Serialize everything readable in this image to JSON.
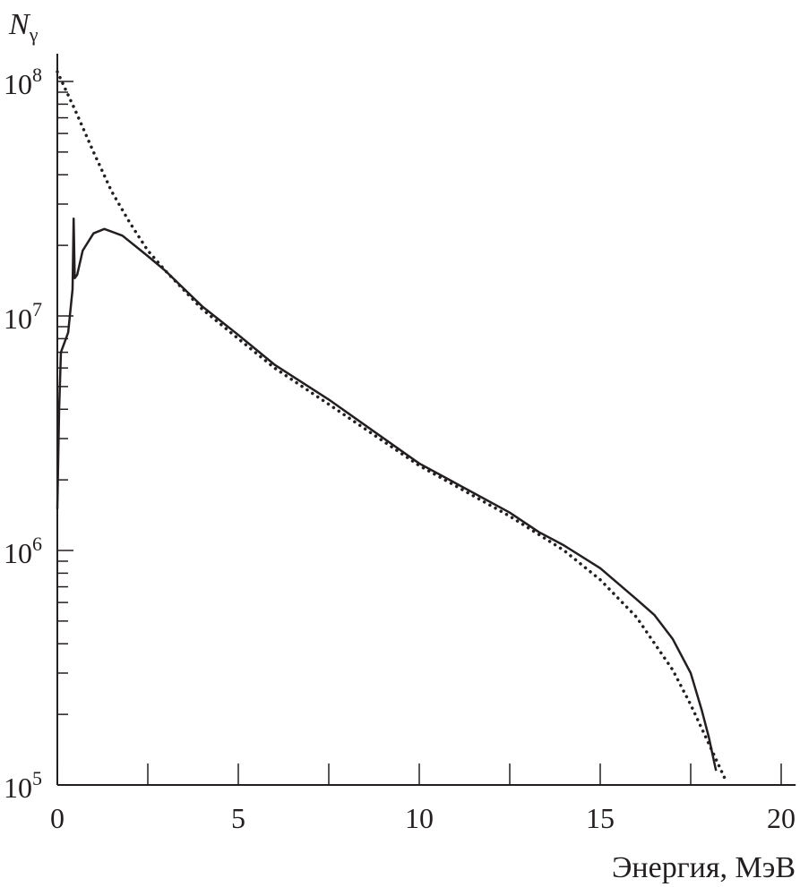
{
  "chart_data": {
    "type": "line",
    "title": "",
    "xlabel": "Энергия, МэВ",
    "ylabel": "N",
    "ylabel_subscript": "γ",
    "xlim": [
      0,
      20.4
    ],
    "ylim": [
      100000,
      150000000
    ],
    "yscale": "log",
    "grid": false,
    "x_ticks": [
      0,
      5,
      10,
      15,
      20
    ],
    "x_tick_labels": [
      "0",
      "5",
      "10",
      "15",
      "20"
    ],
    "x_minor_ticks": [
      2.5,
      7.5,
      12.5,
      17.5
    ],
    "y_ticks": [
      100000,
      1000000,
      10000000,
      100000000
    ],
    "y_tick_labels": [
      {
        "base": "10",
        "exp": "5"
      },
      {
        "base": "10",
        "exp": "6"
      },
      {
        "base": "10",
        "exp": "7"
      },
      {
        "base": "10",
        "exp": "8"
      }
    ],
    "colors": {
      "line": "#231f20"
    },
    "series": [
      {
        "style": "solid",
        "points": [
          [
            0,
            1500000
          ],
          [
            0.05,
            4000000
          ],
          [
            0.1,
            7000000
          ],
          [
            0.3,
            8500000
          ],
          [
            0.42,
            13000000
          ],
          [
            0.45,
            26000000
          ],
          [
            0.48,
            14500000
          ],
          [
            0.55,
            15000000
          ],
          [
            0.7,
            19000000
          ],
          [
            1.0,
            22500000
          ],
          [
            1.3,
            23500000
          ],
          [
            1.8,
            22000000
          ],
          [
            2.5,
            18000000
          ],
          [
            3,
            15500000
          ],
          [
            4,
            11000000
          ],
          [
            5,
            8300000
          ],
          [
            6,
            6200000
          ],
          [
            7.5,
            4400000
          ],
          [
            10,
            2350000
          ],
          [
            12.5,
            1450000
          ],
          [
            13.3,
            1200000
          ],
          [
            14,
            1050000
          ],
          [
            15,
            840000
          ],
          [
            16,
            620000
          ],
          [
            16.5,
            530000
          ],
          [
            17,
            420000
          ],
          [
            17.5,
            300000
          ],
          [
            17.8,
            210000
          ],
          [
            18,
            160000
          ],
          [
            18.2,
            115000
          ]
        ]
      },
      {
        "style": "dotted",
        "points": [
          [
            0,
            110000000
          ],
          [
            0.5,
            75000000
          ],
          [
            1,
            50000000
          ],
          [
            1.5,
            34000000
          ],
          [
            2,
            25000000
          ],
          [
            2.5,
            19000000
          ],
          [
            3,
            15500000
          ],
          [
            4,
            10700000
          ],
          [
            5,
            8000000
          ],
          [
            6,
            6000000
          ],
          [
            7.5,
            4200000
          ],
          [
            10,
            2300000
          ],
          [
            12.5,
            1400000
          ],
          [
            14,
            1000000
          ],
          [
            15,
            750000
          ],
          [
            16,
            520000
          ],
          [
            17,
            310000
          ],
          [
            17.5,
            220000
          ],
          [
            18,
            150000
          ],
          [
            18.5,
            102000
          ]
        ]
      }
    ]
  }
}
